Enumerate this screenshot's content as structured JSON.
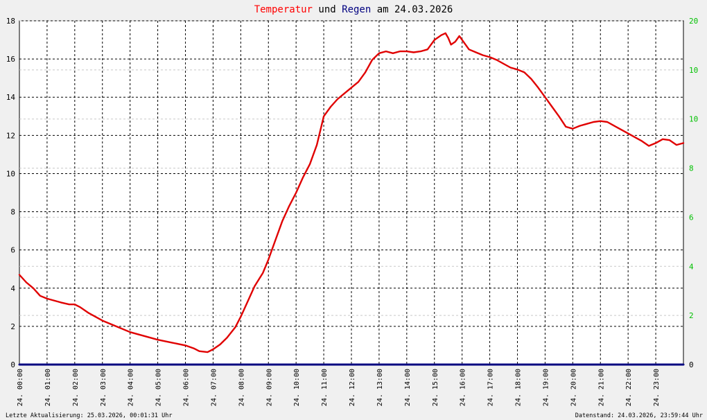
{
  "chart_data": {
    "type": "line",
    "title_parts": [
      {
        "text": "Temperatur",
        "color": "#ff0000"
      },
      {
        "text": " und ",
        "color": "#000000"
      },
      {
        "text": "Regen",
        "color": "#000080"
      },
      {
        "text": " am 24.03.2026",
        "color": "#000000"
      }
    ],
    "footer_left": "Letzte Aktualisierung: 25.03.2026, 00:01:31 Uhr",
    "footer_right": "Datenstand: 24.03.2026, 23:59:44 Uhr",
    "xlim": [
      0,
      24
    ],
    "ylim_left": [
      0,
      18
    ],
    "left_ticks": [
      "0",
      "2",
      "4",
      "6",
      "8",
      "10",
      "12",
      "14",
      "16",
      "18"
    ],
    "ylim_right": [
      0,
      20
    ],
    "right_ticks": [
      "0",
      "2",
      "4",
      "6",
      "8",
      "10",
      "10",
      "20"
    ],
    "right_tick_color": "#00c000",
    "x_ticks": [
      "24. 00:00",
      "24. 01:00",
      "24. 02:00",
      "24. 03:00",
      "24. 04:00",
      "24. 05:00",
      "24. 06:00",
      "24. 07:00",
      "24. 08:00",
      "24. 09:00",
      "24. 10:00",
      "24. 11:00",
      "24. 12:00",
      "24. 13:00",
      "24. 14:00",
      "24. 15:00",
      "24. 16:00",
      "24. 17:00",
      "24. 18:00",
      "24. 19:00",
      "24. 20:00",
      "24. 21:00",
      "24. 22:00",
      "24. 23:00"
    ],
    "grid": true,
    "series": [
      {
        "name": "Temperatur",
        "color": "#e00000",
        "axis": "left",
        "x": [
          0,
          0.25,
          0.5,
          0.75,
          1,
          1.5,
          1.8,
          2,
          2.2,
          2.5,
          3,
          3.5,
          4,
          4.5,
          5,
          5.5,
          6,
          6.3,
          6.5,
          6.8,
          7,
          7.25,
          7.5,
          7.8,
          8,
          8.25,
          8.5,
          8.8,
          9,
          9.25,
          9.5,
          9.75,
          10,
          10.25,
          10.5,
          10.75,
          11,
          11.25,
          11.5,
          11.75,
          12,
          12.25,
          12.5,
          12.75,
          13,
          13.25,
          13.5,
          13.75,
          14,
          14.25,
          14.5,
          14.75,
          15,
          15.25,
          15.4,
          15.5,
          15.6,
          15.75,
          15.9,
          16,
          16.25,
          16.5,
          16.75,
          17,
          17.25,
          17.5,
          17.75,
          18,
          18.25,
          18.5,
          18.75,
          19,
          19.25,
          19.5,
          19.75,
          20,
          20.25,
          20.5,
          20.75,
          21,
          21.25,
          21.5,
          21.75,
          22,
          22.25,
          22.5,
          22.75,
          23,
          23.25,
          23.5,
          23.75,
          24
        ],
        "y": [
          4.7,
          4.3,
          4.0,
          3.6,
          3.45,
          3.25,
          3.15,
          3.15,
          3.0,
          2.7,
          2.3,
          2.0,
          1.7,
          1.5,
          1.3,
          1.15,
          1.0,
          0.85,
          0.7,
          0.65,
          0.8,
          1.05,
          1.4,
          1.95,
          2.5,
          3.3,
          4.1,
          4.8,
          5.5,
          6.5,
          7.5,
          8.3,
          9.0,
          9.8,
          10.5,
          11.5,
          13.0,
          13.5,
          13.9,
          14.2,
          14.5,
          14.8,
          15.3,
          15.95,
          16.3,
          16.4,
          16.3,
          16.4,
          16.4,
          16.35,
          16.4,
          16.5,
          17.0,
          17.25,
          17.35,
          17.1,
          16.75,
          16.9,
          17.2,
          17.0,
          16.5,
          16.35,
          16.2,
          16.1,
          15.95,
          15.75,
          15.55,
          15.45,
          15.3,
          14.95,
          14.5,
          14.0,
          13.5,
          13.0,
          12.45,
          12.35,
          12.5,
          12.6,
          12.7,
          12.75,
          12.7,
          12.5,
          12.3,
          12.1,
          11.9,
          11.7,
          11.45,
          11.6,
          11.8,
          11.75,
          11.5,
          11.6
        ]
      },
      {
        "name": "Regen",
        "color": "#000080",
        "axis": "right",
        "x": [
          0,
          24
        ],
        "y": [
          0,
          0
        ]
      }
    ]
  }
}
